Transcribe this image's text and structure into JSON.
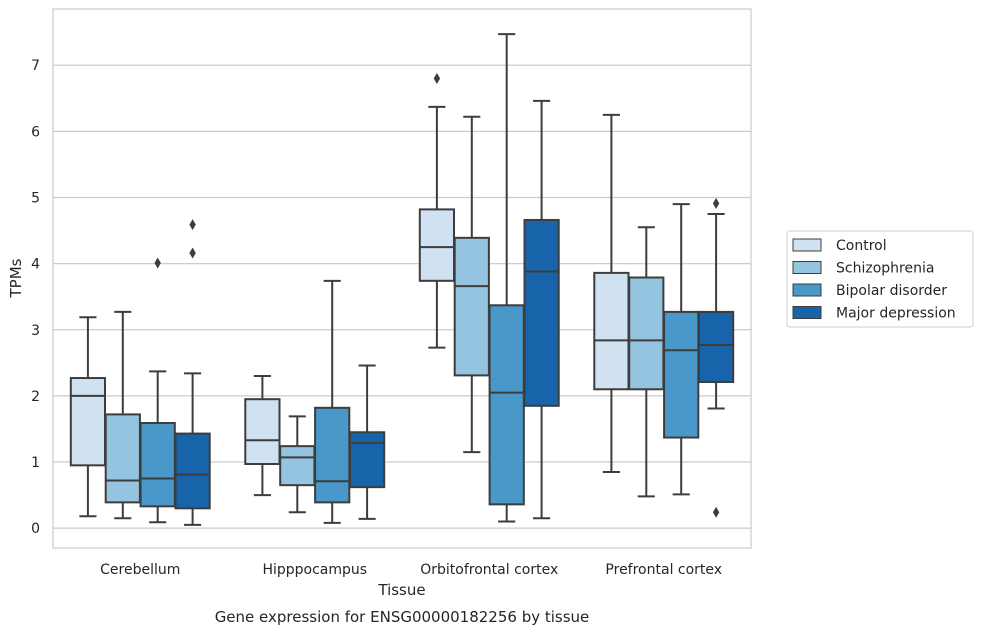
{
  "caption": "Gene expression for ENSG00000182256 by tissue",
  "chart_data": {
    "type": "boxplot",
    "xlabel": "Tissue",
    "ylabel": "TPMs",
    "ylim": [
      -0.3,
      7.85
    ],
    "yticks": [
      0,
      1,
      2,
      3,
      4,
      5,
      6,
      7
    ],
    "grid": "horizontal",
    "legend_position": "right",
    "categories": [
      "Cerebellum",
      "Hipppocampus",
      "Orbitofrontal cortex",
      "Prefrontal cortex"
    ],
    "series": [
      {
        "name": "Control",
        "color": "#d0e1f2",
        "boxes": [
          {
            "whislo": 0.18,
            "q1": 0.95,
            "med": 2.0,
            "q3": 2.27,
            "whishi": 3.19,
            "fliers": []
          },
          {
            "whislo": 0.5,
            "q1": 0.97,
            "med": 1.33,
            "q3": 1.95,
            "whishi": 2.3,
            "fliers": []
          },
          {
            "whislo": 2.73,
            "q1": 3.74,
            "med": 4.25,
            "q3": 4.82,
            "whishi": 6.37,
            "fliers": [
              6.8
            ]
          },
          {
            "whislo": 0.85,
            "q1": 2.1,
            "med": 2.84,
            "q3": 3.86,
            "whishi": 6.25,
            "fliers": []
          }
        ]
      },
      {
        "name": "Schizophrenia",
        "color": "#94c4df",
        "boxes": [
          {
            "whislo": 0.15,
            "q1": 0.39,
            "med": 0.72,
            "q3": 1.72,
            "whishi": 3.27,
            "fliers": []
          },
          {
            "whislo": 0.24,
            "q1": 0.65,
            "med": 1.07,
            "q3": 1.24,
            "whishi": 1.69,
            "fliers": []
          },
          {
            "whislo": 1.15,
            "q1": 2.31,
            "med": 3.66,
            "q3": 4.39,
            "whishi": 6.22,
            "fliers": []
          },
          {
            "whislo": 0.48,
            "q1": 2.1,
            "med": 2.84,
            "q3": 3.79,
            "whishi": 4.55,
            "fliers": []
          }
        ]
      },
      {
        "name": "Bipolar disorder",
        "color": "#4a98c9",
        "boxes": [
          {
            "whislo": 0.09,
            "q1": 0.33,
            "med": 0.75,
            "q3": 1.59,
            "whishi": 2.37,
            "fliers": [
              4.01
            ]
          },
          {
            "whislo": 0.08,
            "q1": 0.39,
            "med": 0.71,
            "q3": 1.82,
            "whishi": 3.74,
            "fliers": []
          },
          {
            "whislo": 0.1,
            "q1": 0.36,
            "med": 2.05,
            "q3": 3.37,
            "whishi": 7.47,
            "fliers": []
          },
          {
            "whislo": 0.51,
            "q1": 1.37,
            "med": 2.69,
            "q3": 3.27,
            "whishi": 4.9,
            "fliers": []
          }
        ]
      },
      {
        "name": "Major depression",
        "color": "#1764ab",
        "boxes": [
          {
            "whislo": 0.05,
            "q1": 0.3,
            "med": 0.81,
            "q3": 1.43,
            "whishi": 2.34,
            "fliers": [
              4.16,
              4.59
            ]
          },
          {
            "whislo": 0.14,
            "q1": 0.62,
            "med": 1.29,
            "q3": 1.45,
            "whishi": 2.46,
            "fliers": []
          },
          {
            "whislo": 0.15,
            "q1": 1.85,
            "med": 3.88,
            "q3": 4.66,
            "whishi": 6.46,
            "fliers": []
          },
          {
            "whislo": 1.81,
            "q1": 2.21,
            "med": 2.77,
            "q3": 3.27,
            "whishi": 4.75,
            "fliers": [
              0.24,
              4.91
            ]
          }
        ]
      }
    ]
  }
}
